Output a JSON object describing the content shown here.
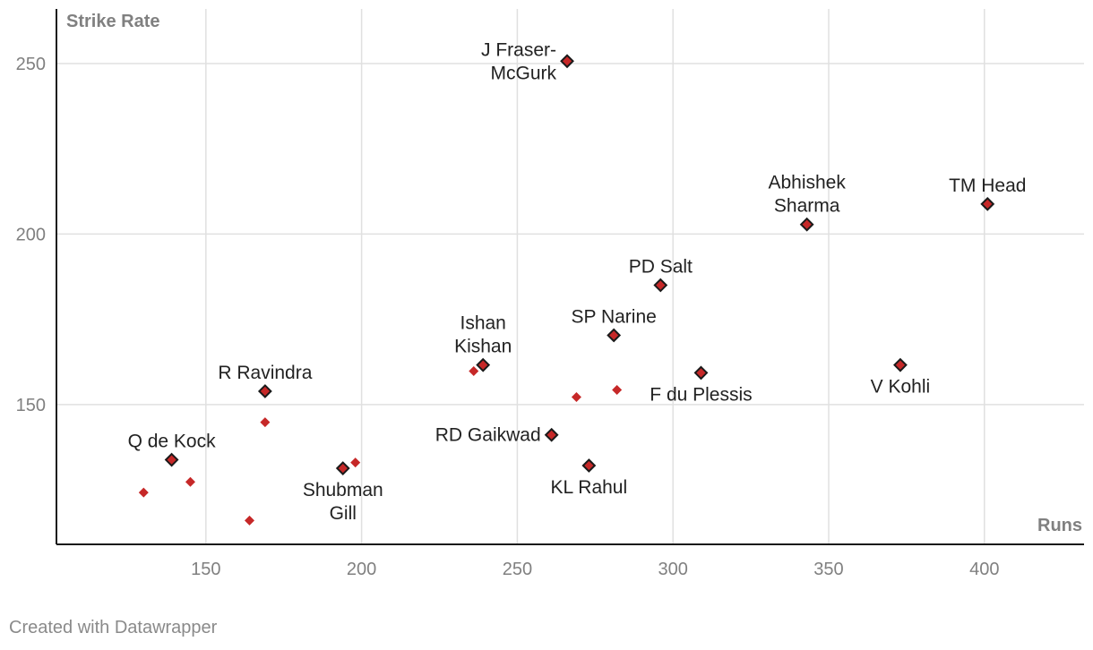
{
  "chart_data": {
    "type": "scatter",
    "title": "",
    "xlabel": "Runs",
    "ylabel": "Strike Rate",
    "xlim": [
      102,
      432
    ],
    "ylim": [
      109,
      266
    ],
    "xticks": [
      150,
      200,
      250,
      300,
      350,
      400
    ],
    "yticks": [
      150,
      200,
      250
    ],
    "grid": true,
    "colors": {
      "point": "#c62828",
      "outline": "#1a1a1a",
      "grid": "#e0e0e0",
      "axis": "#1a1a1a"
    },
    "labeled_points": [
      {
        "label": [
          "J Fraser-",
          "McGurk"
        ],
        "x": 266,
        "y": 250.7,
        "pos": "left"
      },
      {
        "label": [
          "TM Head"
        ],
        "x": 401,
        "y": 208.8,
        "pos": "above"
      },
      {
        "label": [
          "Abhishek",
          "Sharma"
        ],
        "x": 343,
        "y": 202.8,
        "pos": "above"
      },
      {
        "label": [
          "PD Salt"
        ],
        "x": 296,
        "y": 185.0,
        "pos": "above"
      },
      {
        "label": [
          "SP Narine"
        ],
        "x": 281,
        "y": 170.3,
        "pos": "above"
      },
      {
        "label": [
          "Ishan",
          "Kishan"
        ],
        "x": 239,
        "y": 161.6,
        "pos": "above"
      },
      {
        "label": [
          "F du Plessis"
        ],
        "x": 309,
        "y": 159.3,
        "pos": "below"
      },
      {
        "label": [
          "V Kohli"
        ],
        "x": 373,
        "y": 161.6,
        "pos": "below"
      },
      {
        "label": [
          "R Ravindra"
        ],
        "x": 169,
        "y": 153.9,
        "pos": "above"
      },
      {
        "label": [
          "RD Gaikwad"
        ],
        "x": 261,
        "y": 141.1,
        "pos": "left"
      },
      {
        "label": [
          "Q de Kock"
        ],
        "x": 139,
        "y": 133.8,
        "pos": "above"
      },
      {
        "label": [
          "KL Rahul"
        ],
        "x": 273,
        "y": 132.1,
        "pos": "below"
      },
      {
        "label": [
          "Shubman",
          "Gill"
        ],
        "x": 194,
        "y": 131.3,
        "pos": "below"
      }
    ],
    "unlabeled_points": [
      {
        "x": 130,
        "y": 124.2
      },
      {
        "x": 145,
        "y": 127.3
      },
      {
        "x": 164,
        "y": 116.0
      },
      {
        "x": 169,
        "y": 144.8
      },
      {
        "x": 198,
        "y": 133.0
      },
      {
        "x": 236,
        "y": 159.8
      },
      {
        "x": 269,
        "y": 152.2
      },
      {
        "x": 282,
        "y": 154.3
      }
    ]
  },
  "footer": {
    "credit": "Created with Datawrapper"
  }
}
